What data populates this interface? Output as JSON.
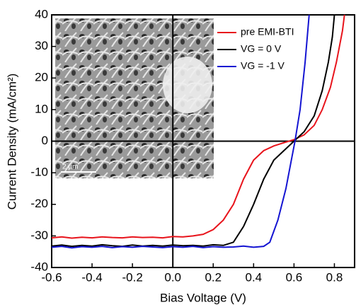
{
  "chart_data": {
    "type": "line",
    "xlabel": "Bias Voltage (V)",
    "ylabel": "Current Density (mA/cm²)",
    "inset_scale_label": "2 µm",
    "xlim": [
      -0.6,
      0.9
    ],
    "ylim": [
      -40,
      40
    ],
    "xticks": [
      -0.6,
      -0.4,
      -0.2,
      {
        "value": 0,
        "label": "0.0"
      },
      0.2,
      0.4,
      0.6,
      0.8
    ],
    "yticks": [
      -40,
      -30,
      -20,
      -10,
      0,
      10,
      20,
      30,
      40
    ],
    "series": [
      {
        "name": "pre EMI-BTI",
        "color": "#e8141c",
        "x": [
          -0.6,
          -0.55,
          -0.5,
          -0.45,
          -0.4,
          -0.35,
          -0.3,
          -0.25,
          -0.2,
          -0.15,
          -0.1,
          -0.05,
          0,
          0.05,
          0.1,
          0.15,
          0.2,
          0.25,
          0.3,
          0.35,
          0.4,
          0.45,
          0.5,
          0.55,
          0.6,
          0.65,
          0.7,
          0.74,
          0.78,
          0.81,
          0.84,
          0.85
        ],
        "values": [
          -30.6,
          -30.3,
          -30.7,
          -30.4,
          -30.6,
          -30.3,
          -30.5,
          -30.6,
          -30.3,
          -30.5,
          -30.4,
          -30.6,
          -30.2,
          -30.3,
          -30,
          -29.5,
          -28,
          -25,
          -20,
          -12,
          -6,
          -3,
          -1.5,
          -0.5,
          0.5,
          2,
          5,
          10,
          17,
          25,
          35,
          40
        ]
      },
      {
        "name": "VG = 0 V",
        "color": "#000000",
        "x": [
          -0.6,
          -0.55,
          -0.5,
          -0.45,
          -0.4,
          -0.35,
          -0.3,
          -0.25,
          -0.2,
          -0.15,
          -0.1,
          -0.05,
          0,
          0.05,
          0.1,
          0.15,
          0.2,
          0.25,
          0.3,
          0.35,
          0.4,
          0.45,
          0.5,
          0.55,
          0.6,
          0.65,
          0.7,
          0.74,
          0.77,
          0.79,
          0.8
        ],
        "values": [
          -33.2,
          -32.9,
          -33.3,
          -33,
          -33.2,
          -32.8,
          -33.1,
          -33.3,
          -32.9,
          -33.2,
          -33,
          -33.2,
          -32.9,
          -33.1,
          -33,
          -33.2,
          -32.8,
          -33,
          -32,
          -27,
          -20,
          -12,
          -6,
          -3,
          0,
          3,
          8,
          16,
          25,
          33,
          40
        ]
      },
      {
        "name": "VG = -1 V",
        "color": "#1414d2",
        "x": [
          -0.6,
          -0.55,
          -0.5,
          -0.45,
          -0.4,
          -0.35,
          -0.3,
          -0.25,
          -0.2,
          -0.15,
          -0.1,
          -0.05,
          0,
          0.05,
          0.1,
          0.15,
          0.2,
          0.25,
          0.3,
          0.35,
          0.4,
          0.45,
          0.48,
          0.52,
          0.56,
          0.59,
          0.605,
          0.63,
          0.655,
          0.675
        ],
        "values": [
          -33.6,
          -33.3,
          -33.8,
          -33.4,
          -33.6,
          -33.3,
          -33.7,
          -33.4,
          -33.6,
          -33.3,
          -33.5,
          -33.7,
          -33.4,
          -33.6,
          -33.3,
          -33.7,
          -33.4,
          -33.6,
          -33.5,
          -33.2,
          -33.6,
          -33.3,
          -32,
          -25,
          -15,
          -5,
          0,
          10,
          25,
          40
        ]
      }
    ]
  }
}
